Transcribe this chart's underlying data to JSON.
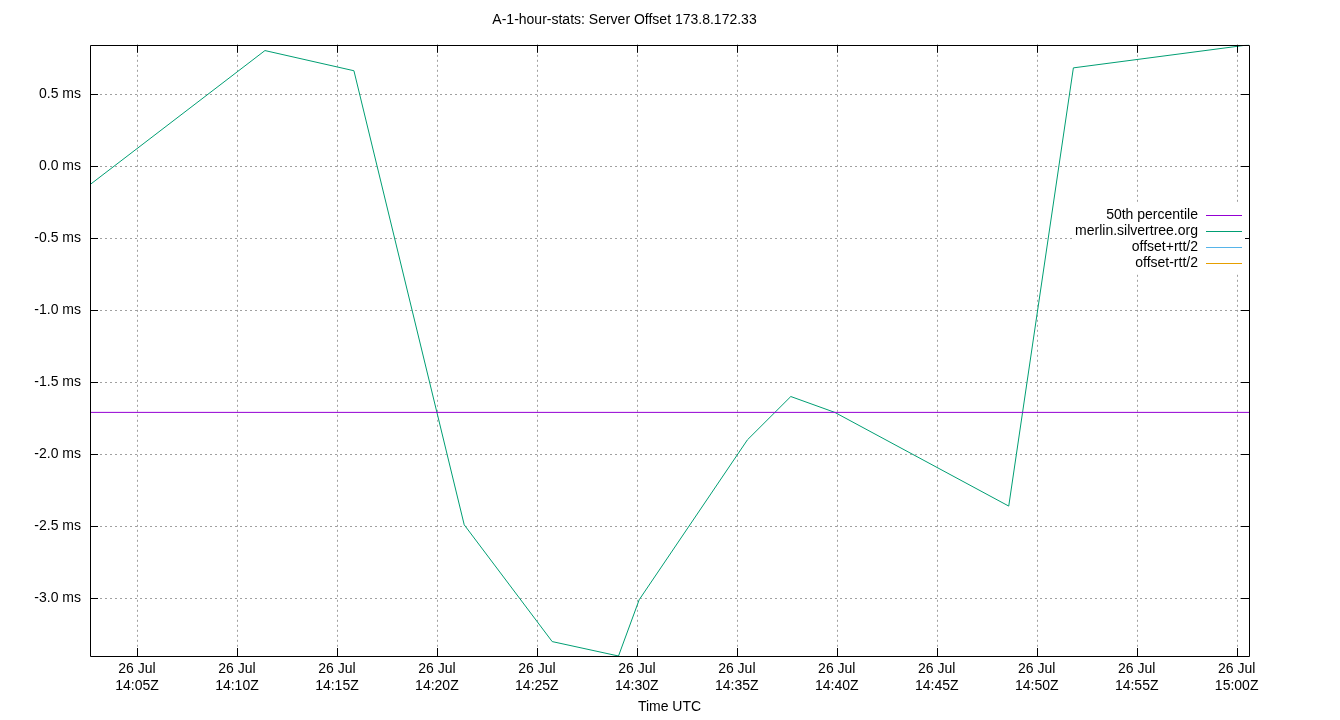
{
  "chart_data": {
    "type": "line",
    "title": "A-1-hour-stats: Server Offset 173.8.172.33",
    "xlabel": "Time UTC",
    "x": [
      "--07-26T14:02:39",
      "--07-26T14:11:24",
      "--07-26T14:15:51",
      "--07-26T14:21:22",
      "--07-26T14:25:46",
      "--07-26T14:29:05",
      "--07-26T14:30:07",
      "--07-26T14:35:32",
      "--07-26T14:37:42",
      "--07-26T14:39:54",
      "--07-26T14:48:36",
      "--07-26T14:51:50",
      "--07-26T15:00:37"
    ],
    "series": [
      {
        "name": "50th percentile",
        "color": "#9400d3",
        "x": [
          "--07-26T14:02:39",
          "--07-26T15:00:37"
        ],
        "values": [
          -1.71,
          -1.71
        ]
      },
      {
        "name": "merlin.silvertree.org",
        "color": "#009e73",
        "values": [
          -0.13,
          0.8,
          0.66,
          -2.49,
          -3.3,
          -3.4,
          -3.01,
          -1.9,
          -1.6,
          -1.71,
          -2.36,
          0.68,
          0.84
        ]
      },
      {
        "name": "offset+rtt/2",
        "color": "#56b4e9",
        "values": [
          null,
          null,
          null,
          null,
          null,
          null,
          null,
          null,
          null,
          null,
          null,
          null,
          null
        ]
      },
      {
        "name": "offset-rtt/2",
        "color": "#e69f00",
        "values": [
          null,
          null,
          null,
          null,
          null,
          null,
          null,
          null,
          null,
          null,
          null,
          null,
          null
        ]
      }
    ],
    "xlim": [
      "--07-26T14:02:39",
      "--07-26T15:00:37"
    ],
    "ylim": [
      -3.4,
      0.84
    ],
    "xticks": [
      {
        "value": "--07-26T14:05",
        "label": "26 Jul\n14:05Z"
      },
      {
        "value": "--07-26T14:10",
        "label": "26 Jul\n14:10Z"
      },
      {
        "value": "--07-26T14:15",
        "label": "26 Jul\n14:15Z"
      },
      {
        "value": "--07-26T14:20",
        "label": "26 Jul\n14:20Z"
      },
      {
        "value": "--07-26T14:25",
        "label": "26 Jul\n14:25Z"
      },
      {
        "value": "--07-26T14:30",
        "label": "26 Jul\n14:30Z"
      },
      {
        "value": "--07-26T14:35",
        "label": "26 Jul\n14:35Z"
      },
      {
        "value": "--07-26T14:40",
        "label": "26 Jul\n14:40Z"
      },
      {
        "value": "--07-26T14:45",
        "label": "26 Jul\n14:45Z"
      },
      {
        "value": "--07-26T14:50",
        "label": "26 Jul\n14:50Z"
      },
      {
        "value": "--07-26T14:55",
        "label": "26 Jul\n14:55Z"
      },
      {
        "value": "--07-26T15:00",
        "label": "26 Jul\n15:00Z"
      }
    ],
    "yticks": [
      {
        "value": 0.5,
        "label": "0.5 ms"
      },
      {
        "value": 0,
        "label": "0.0 ms"
      },
      {
        "value": -0.5,
        "label": "-0.5 ms"
      },
      {
        "value": -1,
        "label": "-1.0 ms"
      },
      {
        "value": -1.5,
        "label": "-1.5 ms"
      },
      {
        "value": -2,
        "label": "-2.0 ms"
      },
      {
        "value": -2.5,
        "label": "-2.5 ms"
      },
      {
        "value": -3,
        "label": "-3.0 ms"
      }
    ],
    "grid": true,
    "legend": "top right",
    "marker": "none",
    "line_style": "solid"
  }
}
